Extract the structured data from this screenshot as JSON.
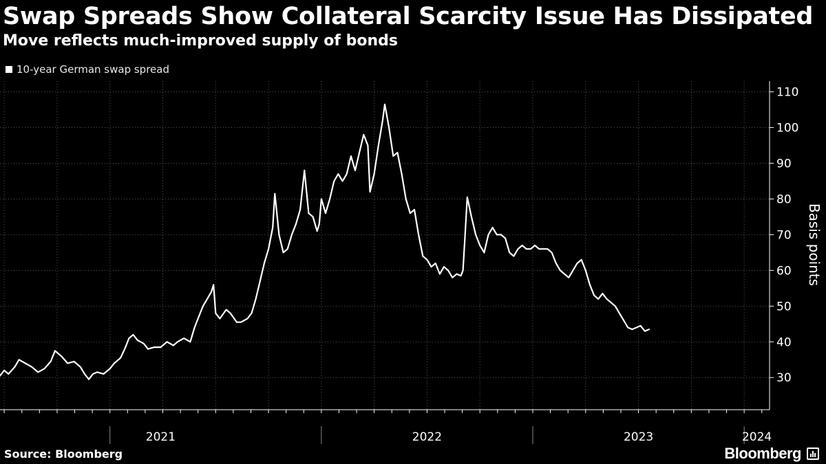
{
  "header": {
    "title": "Swap Spreads Show Collateral Scarcity Issue Has Dissipated",
    "subtitle": "Move reflects much-improved supply of bonds"
  },
  "footer": {
    "source": "Source: Bloomberg",
    "brand": "Bloomberg"
  },
  "colors": {
    "background": "#000000",
    "line": "#ffffff",
    "grid": "#555555"
  },
  "chart_data": {
    "type": "line",
    "title": "Swap Spreads Show Collateral Scarcity Issue Has Dissipated",
    "subtitle": "Move reflects much-improved supply of bonds",
    "ylabel": "Basis points",
    "xlabel": "",
    "ylim": [
      21,
      113
    ],
    "yticks": [
      30,
      40,
      50,
      60,
      70,
      80,
      90,
      100,
      110
    ],
    "xlim": [
      2020.48,
      2024.12
    ],
    "year_labels": [
      {
        "label": "2021",
        "x": 2021.0
      },
      {
        "label": "2022",
        "x": 2022.0
      },
      {
        "label": "2023",
        "x": 2023.0
      },
      {
        "label": "2024",
        "x": 2024.0
      }
    ],
    "legend": [
      {
        "name": "10-year German swap spread",
        "placement": "top-left"
      }
    ],
    "series": [
      {
        "name": "10-year German swap spread",
        "points": [
          [
            2020.48,
            30.5
          ],
          [
            2020.5,
            32.0
          ],
          [
            2020.52,
            31.0
          ],
          [
            2020.55,
            33.0
          ],
          [
            2020.57,
            35.0
          ],
          [
            2020.6,
            34.0
          ],
          [
            2020.63,
            33.0
          ],
          [
            2020.66,
            31.5
          ],
          [
            2020.69,
            32.5
          ],
          [
            2020.72,
            34.5
          ],
          [
            2020.74,
            37.5
          ],
          [
            2020.77,
            36.0
          ],
          [
            2020.8,
            34.0
          ],
          [
            2020.83,
            34.5
          ],
          [
            2020.86,
            33.0
          ],
          [
            2020.88,
            31.0
          ],
          [
            2020.9,
            29.5
          ],
          [
            2020.92,
            31.0
          ],
          [
            2020.94,
            31.5
          ],
          [
            2020.97,
            31.0
          ],
          [
            2021.0,
            32.5
          ],
          [
            2021.02,
            34.0
          ],
          [
            2021.05,
            35.5
          ],
          [
            2021.07,
            38.0
          ],
          [
            2021.09,
            41.0
          ],
          [
            2021.11,
            42.0
          ],
          [
            2021.13,
            40.5
          ],
          [
            2021.16,
            39.5
          ],
          [
            2021.18,
            38.0
          ],
          [
            2021.21,
            38.5
          ],
          [
            2021.24,
            38.5
          ],
          [
            2021.27,
            40.0
          ],
          [
            2021.3,
            39.0
          ],
          [
            2021.32,
            40.0
          ],
          [
            2021.35,
            41.0
          ],
          [
            2021.38,
            40.0
          ],
          [
            2021.4,
            44.0
          ],
          [
            2021.42,
            47.0
          ],
          [
            2021.44,
            50.0
          ],
          [
            2021.46,
            52.0
          ],
          [
            2021.48,
            54.0
          ],
          [
            2021.49,
            56.0
          ],
          [
            2021.5,
            48.0
          ],
          [
            2021.52,
            46.5
          ],
          [
            2021.55,
            49.0
          ],
          [
            2021.57,
            48.0
          ],
          [
            2021.6,
            45.5
          ],
          [
            2021.62,
            45.5
          ],
          [
            2021.65,
            46.5
          ],
          [
            2021.67,
            48.0
          ],
          [
            2021.69,
            52.0
          ],
          [
            2021.71,
            57.0
          ],
          [
            2021.73,
            62.0
          ],
          [
            2021.75,
            66.0
          ],
          [
            2021.77,
            72.0
          ],
          [
            2021.78,
            81.5
          ],
          [
            2021.8,
            70.0
          ],
          [
            2021.82,
            65.0
          ],
          [
            2021.84,
            66.0
          ],
          [
            2021.86,
            70.0
          ],
          [
            2021.88,
            73.0
          ],
          [
            2021.9,
            77.0
          ],
          [
            2021.92,
            88.0
          ],
          [
            2021.94,
            76.0
          ],
          [
            2021.96,
            75.0
          ],
          [
            2021.98,
            71.0
          ],
          [
            2021.99,
            73.0
          ],
          [
            2022.0,
            80.0
          ],
          [
            2022.02,
            76.0
          ],
          [
            2022.04,
            80.0
          ],
          [
            2022.06,
            85.0
          ],
          [
            2022.08,
            87.0
          ],
          [
            2022.1,
            85.0
          ],
          [
            2022.12,
            87.0
          ],
          [
            2022.14,
            92.0
          ],
          [
            2022.16,
            88.0
          ],
          [
            2022.18,
            93.0
          ],
          [
            2022.2,
            98.0
          ],
          [
            2022.22,
            95.0
          ],
          [
            2022.23,
            82.0
          ],
          [
            2022.25,
            87.0
          ],
          [
            2022.27,
            95.0
          ],
          [
            2022.29,
            102.0
          ],
          [
            2022.3,
            106.5
          ],
          [
            2022.32,
            100.0
          ],
          [
            2022.34,
            92.0
          ],
          [
            2022.36,
            93.0
          ],
          [
            2022.38,
            87.0
          ],
          [
            2022.4,
            80.0
          ],
          [
            2022.42,
            76.0
          ],
          [
            2022.44,
            77.0
          ],
          [
            2022.46,
            70.0
          ],
          [
            2022.48,
            64.0
          ],
          [
            2022.5,
            63.0
          ],
          [
            2022.52,
            61.0
          ],
          [
            2022.54,
            62.0
          ],
          [
            2022.56,
            59.0
          ],
          [
            2022.58,
            61.0
          ],
          [
            2022.6,
            60.0
          ],
          [
            2022.62,
            58.0
          ],
          [
            2022.64,
            59.0
          ],
          [
            2022.66,
            58.5
          ],
          [
            2022.67,
            60.0
          ],
          [
            2022.68,
            70.0
          ],
          [
            2022.69,
            80.5
          ],
          [
            2022.71,
            75.0
          ],
          [
            2022.73,
            70.0
          ],
          [
            2022.75,
            67.0
          ],
          [
            2022.77,
            65.0
          ],
          [
            2022.79,
            70.0
          ],
          [
            2022.81,
            72.0
          ],
          [
            2022.83,
            70.0
          ],
          [
            2022.85,
            70.0
          ],
          [
            2022.87,
            69.0
          ],
          [
            2022.89,
            65.0
          ],
          [
            2022.91,
            64.0
          ],
          [
            2022.93,
            66.0
          ],
          [
            2022.95,
            67.0
          ],
          [
            2022.97,
            66.0
          ],
          [
            2022.99,
            66.0
          ],
          [
            2023.01,
            67.0
          ],
          [
            2023.03,
            66.0
          ],
          [
            2023.05,
            66.0
          ],
          [
            2023.07,
            66.0
          ],
          [
            2023.09,
            65.0
          ],
          [
            2023.11,
            62.0
          ],
          [
            2023.13,
            60.0
          ],
          [
            2023.15,
            59.0
          ],
          [
            2023.17,
            58.0
          ],
          [
            2023.19,
            60.0
          ],
          [
            2023.21,
            62.0
          ],
          [
            2023.23,
            63.0
          ],
          [
            2023.25,
            60.0
          ],
          [
            2023.27,
            56.0
          ],
          [
            2023.29,
            53.0
          ],
          [
            2023.31,
            52.0
          ],
          [
            2023.33,
            53.5
          ],
          [
            2023.35,
            52.0
          ],
          [
            2023.37,
            51.0
          ],
          [
            2023.39,
            50.0
          ],
          [
            2023.41,
            48.0
          ],
          [
            2023.43,
            46.0
          ],
          [
            2023.45,
            44.0
          ],
          [
            2023.47,
            43.5
          ],
          [
            2023.49,
            44.0
          ],
          [
            2023.51,
            44.5
          ],
          [
            2023.53,
            43.0
          ],
          [
            2023.55,
            43.5
          ]
        ]
      }
    ]
  }
}
